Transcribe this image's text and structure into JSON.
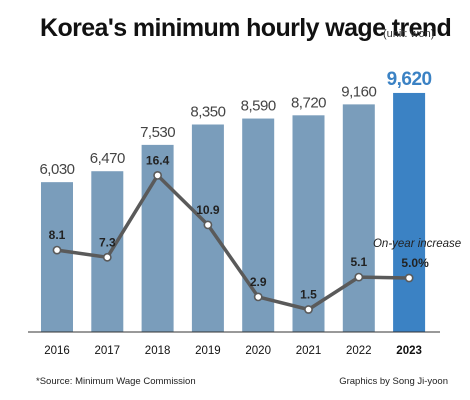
{
  "header": {
    "title": "Korea's minimum hourly wage trend",
    "unit": "(unit: won)"
  },
  "footer": {
    "source": "*Source: Minimum Wage Commission",
    "credit": "Graphics by Song Ji-yoon"
  },
  "colors": {
    "bar": "#7a9dbb",
    "highlight_bar": "#3b82c4",
    "line": "#5a5a5a",
    "axis": "#333333"
  },
  "chart_data": {
    "type": "bar",
    "categories": [
      "2016",
      "2017",
      "2018",
      "2019",
      "2020",
      "2021",
      "2022",
      "2023"
    ],
    "series": [
      {
        "type": "bar",
        "values": [
          6030,
          6470,
          7530,
          8350,
          8590,
          8720,
          9160,
          9620
        ],
        "labels": [
          "6,030",
          "6,470",
          "7,530",
          "8,350",
          "8,590",
          "8,720",
          "9,160",
          "9,620"
        ]
      },
      {
        "name": "On-year increase",
        "type": "line",
        "values": [
          8.1,
          7.3,
          16.4,
          10.9,
          2.9,
          1.5,
          5.1,
          5.0
        ],
        "labels": [
          "8.1",
          "7.3",
          "16.4",
          "10.9",
          "2.9",
          "1.5",
          "5.1",
          "5.0%"
        ]
      }
    ],
    "highlight_category": "2023",
    "ylim": [
      0,
      10000
    ],
    "y2lim": [
      0,
      20
    ],
    "grid": false
  }
}
